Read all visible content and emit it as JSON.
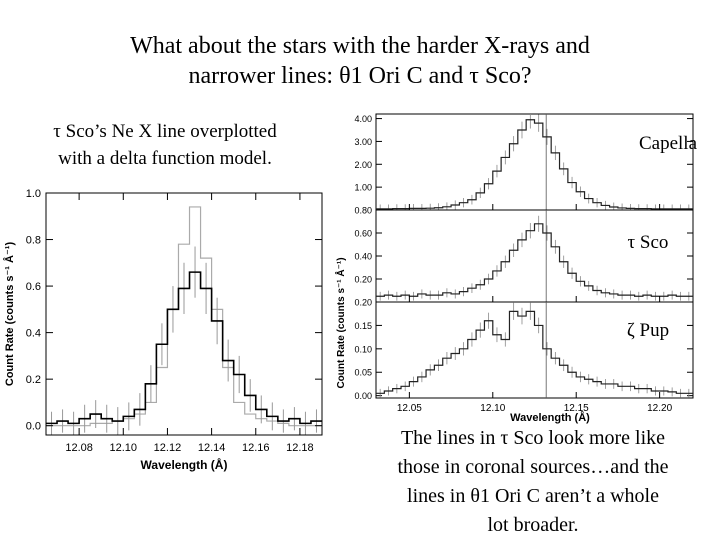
{
  "slide": {
    "title_line1": "What about the stars with the harder X-rays and",
    "title_line2": "narrower lines: θ1 Ori C and τ Sco?",
    "left_caption_line1": "τ Sco’s Ne X line overplotted",
    "left_caption_line2": "with a delta function model.",
    "bottom_text": [
      "The lines in τ Sco look more like",
      "those in coronal sources…and the",
      "lines in θ1 Ori C aren’t a whole",
      "lot broader."
    ]
  },
  "chart_data": [
    {
      "type": "line",
      "xlabel": "Wavelength (Å)",
      "ylabel": "Count Rate (counts s⁻¹ Å⁻¹)",
      "xlim": [
        12.065,
        12.19
      ],
      "ylim": [
        -0.04,
        1.0
      ],
      "x_ticks": [
        "12.08",
        "12.10",
        "12.12",
        "12.14",
        "12.16",
        "12.18"
      ],
      "y_ticks": [
        "0.0",
        "0.2",
        "0.4",
        "0.6",
        "0.8",
        "1.0"
      ],
      "bin_edges": [
        12.065,
        12.07,
        12.075,
        12.08,
        12.085,
        12.09,
        12.095,
        12.1,
        12.105,
        12.11,
        12.115,
        12.12,
        12.125,
        12.13,
        12.135,
        12.14,
        12.145,
        12.15,
        12.155,
        12.16,
        12.165,
        12.17,
        12.175,
        12.18,
        12.185,
        12.19
      ],
      "series": [
        {
          "values": [
            0.01,
            0.02,
            0.01,
            0.03,
            0.05,
            0.03,
            0.02,
            0.04,
            0.07,
            0.18,
            0.35,
            0.5,
            0.59,
            0.66,
            0.59,
            0.45,
            0.28,
            0.22,
            0.13,
            0.07,
            0.04,
            0.02,
            0.03,
            0.01,
            0.02
          ],
          "errors": [
            0.05,
            0.05,
            0.05,
            0.06,
            0.06,
            0.06,
            0.06,
            0.06,
            0.07,
            0.08,
            0.09,
            0.1,
            0.11,
            0.11,
            0.11,
            0.1,
            0.09,
            0.08,
            0.07,
            0.06,
            0.06,
            0.05,
            0.05,
            0.05,
            0.05
          ],
          "color": "#000000"
        },
        {
          "values": [
            0.0,
            0.0,
            0.0,
            0.0,
            0.01,
            0.01,
            0.02,
            0.03,
            0.05,
            0.1,
            0.25,
            0.5,
            0.78,
            0.94,
            0.72,
            0.5,
            0.25,
            0.1,
            0.05,
            0.03,
            0.02,
            0.01,
            0.0,
            0.0,
            0.0
          ],
          "color": "#aaaaaa"
        }
      ]
    },
    {
      "type": "line",
      "panel": "Capella",
      "ylabel": "Count Rate (counts s⁻¹ Å⁻¹)",
      "xlim": [
        12.03,
        12.22
      ],
      "ylim": [
        0.0,
        4.2
      ],
      "y_ticks": [
        "1.00",
        "2.00",
        "3.00",
        "4.00"
      ],
      "reference_line_x": 12.132,
      "values": [
        0.05,
        0.05,
        0.06,
        0.06,
        0.07,
        0.07,
        0.08,
        0.1,
        0.14,
        0.22,
        0.32,
        0.45,
        0.75,
        1.15,
        1.7,
        2.3,
        2.9,
        3.5,
        3.95,
        3.8,
        3.2,
        2.5,
        1.8,
        1.2,
        0.8,
        0.5,
        0.32,
        0.2,
        0.13,
        0.09,
        0.07,
        0.06,
        0.06,
        0.05,
        0.05,
        0.05,
        0.05,
        0.05
      ]
    },
    {
      "type": "line",
      "panel": "τ Sco",
      "xlim": [
        12.03,
        12.22
      ],
      "ylim": [
        0.0,
        0.8
      ],
      "y_ticks": [
        "0.20",
        "0.40",
        "0.60",
        "0.80"
      ],
      "reference_line_x": 12.132,
      "values": [
        0.05,
        0.06,
        0.05,
        0.06,
        0.05,
        0.07,
        0.06,
        0.06,
        0.08,
        0.07,
        0.09,
        0.12,
        0.15,
        0.2,
        0.27,
        0.35,
        0.45,
        0.54,
        0.62,
        0.68,
        0.6,
        0.48,
        0.35,
        0.25,
        0.18,
        0.14,
        0.1,
        0.08,
        0.07,
        0.06,
        0.06,
        0.05,
        0.06,
        0.05,
        0.05,
        0.06,
        0.05,
        0.05
      ]
    },
    {
      "type": "line",
      "panel": "ζ Pup",
      "xlabel": "Wavelength (Å)",
      "xlim": [
        12.03,
        12.22
      ],
      "ylim": [
        -0.005,
        0.2
      ],
      "x_ticks": [
        "12.05",
        "12.10",
        "12.15",
        "12.20"
      ],
      "y_ticks": [
        "0.00",
        "0.05",
        "0.10",
        "0.15",
        "0.20"
      ],
      "reference_line_x": 12.132,
      "values": [
        0.005,
        0.01,
        0.015,
        0.02,
        0.03,
        0.04,
        0.055,
        0.065,
        0.08,
        0.09,
        0.1,
        0.12,
        0.14,
        0.16,
        0.13,
        0.12,
        0.18,
        0.17,
        0.18,
        0.15,
        0.1,
        0.08,
        0.065,
        0.05,
        0.04,
        0.035,
        0.03,
        0.025,
        0.025,
        0.02,
        0.02,
        0.015,
        0.015,
        0.01,
        0.01,
        0.008,
        0.005,
        0.005
      ]
    }
  ],
  "labels": {
    "panel1": "Capella",
    "panel2": "τ Sco",
    "panel3": "ζ Pup",
    "right_xlabel": "Wavelength (Å)",
    "right_ylabel": "Count Rate (counts s⁻¹ Å⁻¹)",
    "right_x_ticks": [
      "12.05",
      "12.10",
      "12.15",
      "12.20"
    ],
    "p1_y_ticks": [
      "1.00",
      "2.00",
      "3.00",
      "4.00"
    ],
    "p2_y_ticks": [
      "0.20",
      "0.40",
      "0.60",
      "0.80"
    ],
    "p3_y_ticks": [
      "0.00",
      "0.05",
      "0.10",
      "0.15",
      "0.20"
    ]
  }
}
